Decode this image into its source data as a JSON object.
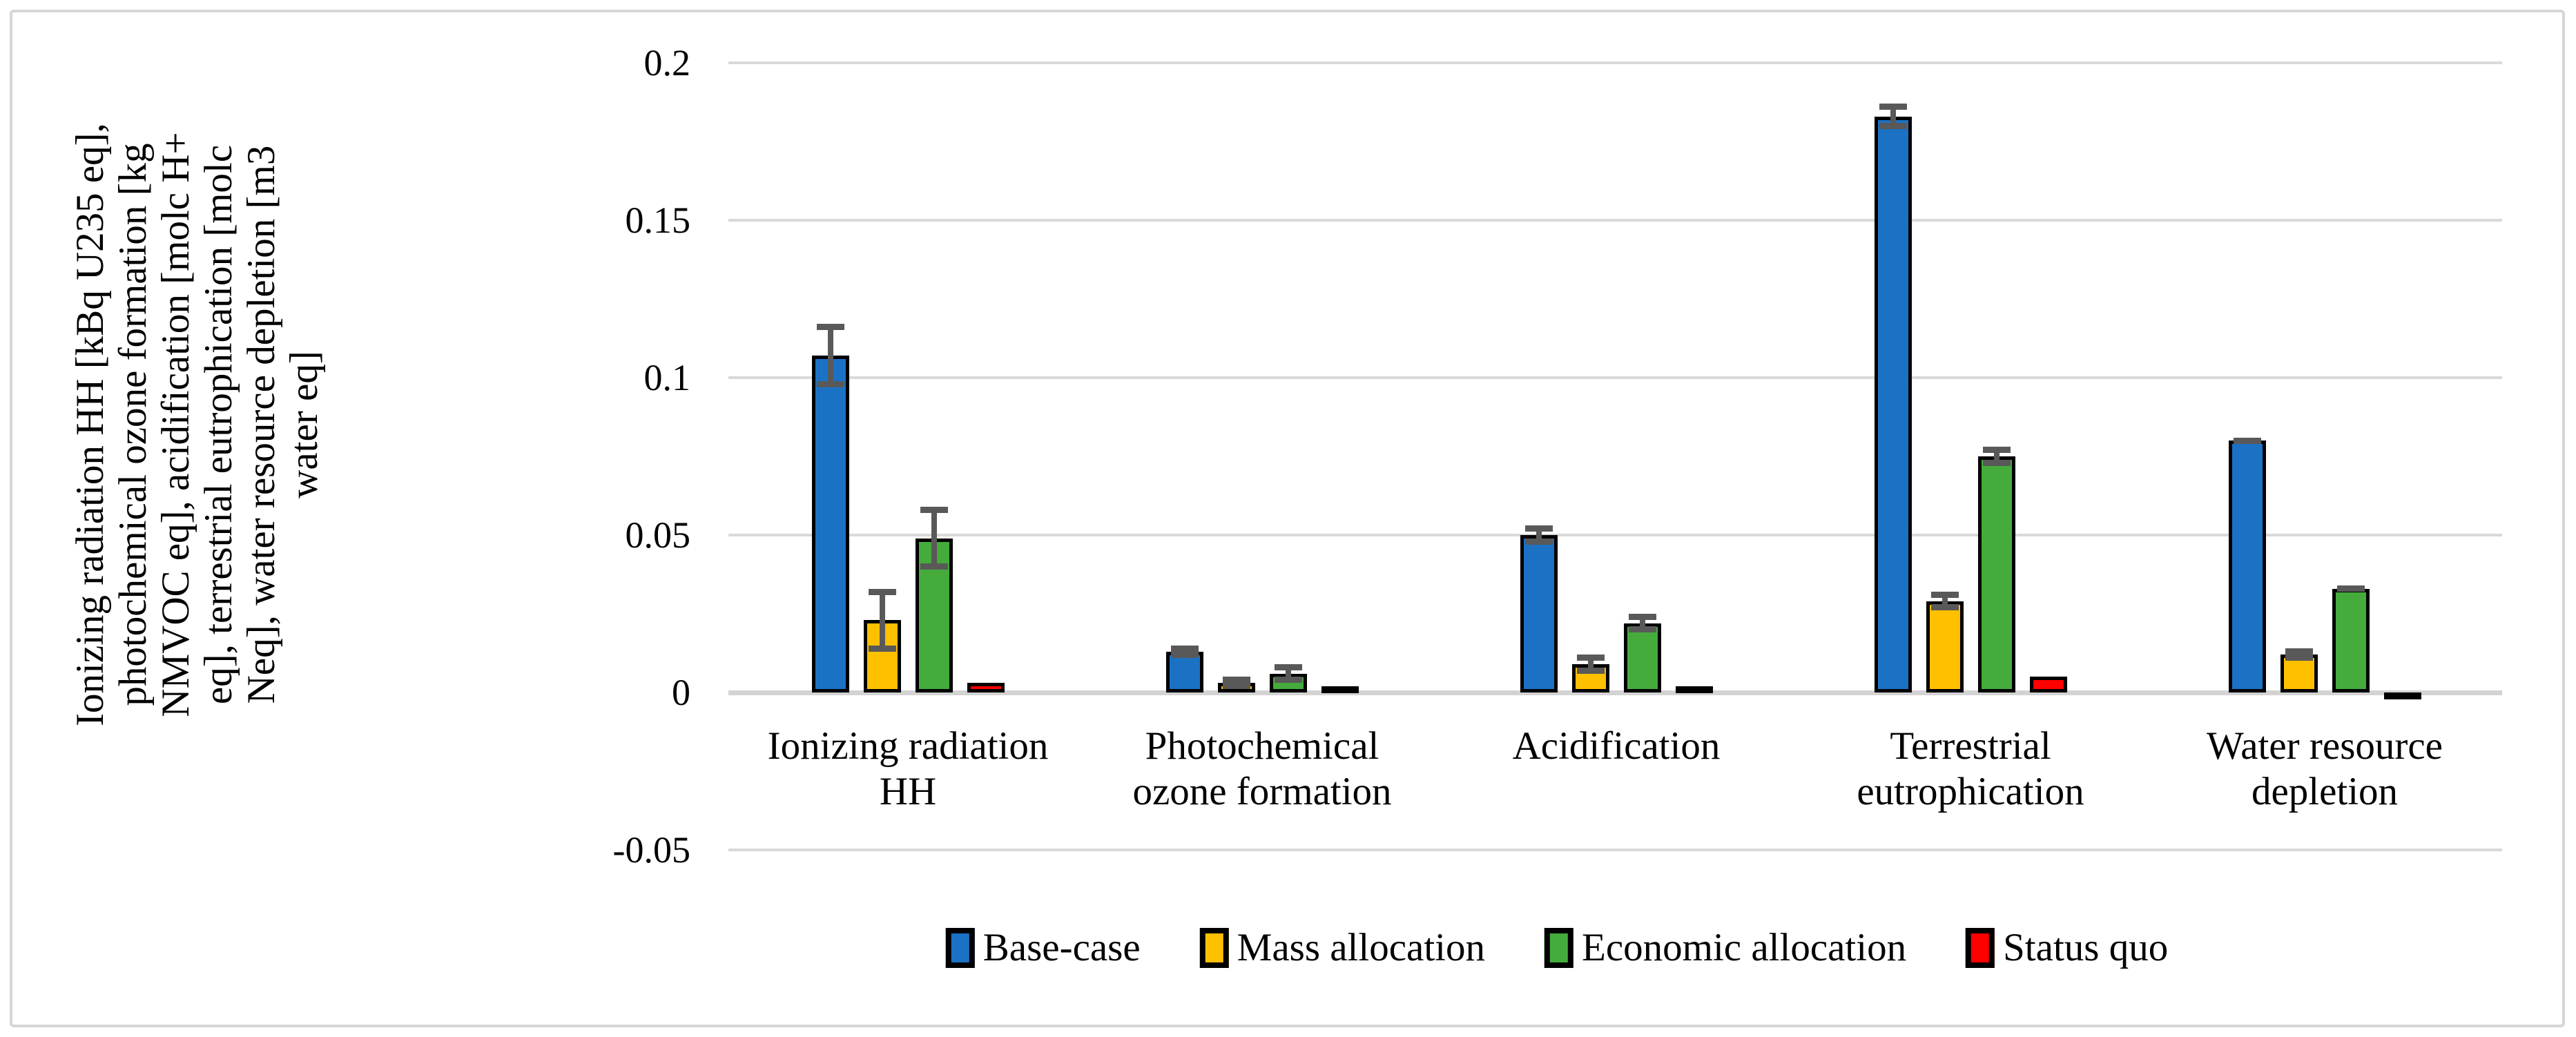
{
  "chart_data": {
    "type": "bar",
    "title": "",
    "ylabel_lines": [
      "Ionizing radiation HH [kBq U235 eq],",
      "photochemical ozone formation [kg",
      "NMVOC eq], acidification [molc H+",
      "eq], terrestrial eutrophication [molc",
      "Neq], water resource depletion [m3",
      "water eq]"
    ],
    "categories": [
      "Ionizing radiation HH",
      "Photochemical ozone formation",
      "Acidification",
      "Terrestrial eutrophication",
      "Water resource depletion"
    ],
    "category_label_lines": [
      [
        "Ionizing radiation",
        "HH"
      ],
      [
        "Photochemical",
        "ozone formation"
      ],
      [
        "Acidification"
      ],
      [
        "Terrestrial",
        "eutrophication"
      ],
      [
        "Water resource",
        "depletion"
      ]
    ],
    "y_ticks": [
      0.2,
      0.15,
      0.1,
      0.05,
      0,
      -0.05
    ],
    "y_tick_labels": [
      "0.2",
      "0.15",
      "0.1",
      "0.05",
      "0",
      "-0.05"
    ],
    "ylim": [
      -0.05,
      0.2
    ],
    "grid": true,
    "legend_position": "bottom",
    "series": [
      {
        "name": "Base-case",
        "color": "#1B72C5",
        "values": [
          0.107,
          0.013,
          0.05,
          0.183,
          0.08
        ],
        "errors": [
          0.01,
          0.002,
          0.003,
          0.004,
          0.001
        ]
      },
      {
        "name": "Mass allocation",
        "color": "#FFC000",
        "values": [
          0.023,
          0.003,
          0.009,
          0.029,
          0.012
        ],
        "errors": [
          0.01,
          0.002,
          0.003,
          0.003,
          0.002
        ]
      },
      {
        "name": "Economic allocation",
        "color": "#45AC3C",
        "values": [
          0.049,
          0.006,
          0.022,
          0.075,
          0.033
        ],
        "errors": [
          0.01,
          0.003,
          0.003,
          0.003,
          0.001
        ]
      },
      {
        "name": "Status quo",
        "color": "#FF0000",
        "values": [
          0.003,
          0.002,
          0.002,
          0.005,
          -0.001
        ],
        "errors": [
          0,
          0,
          0,
          0,
          0
        ]
      }
    ],
    "style_colors": {
      "gridline": "#D9D9D9",
      "zero_line": "#D3D3D3",
      "error_bar": "#595959",
      "bar_outline": "#000000",
      "frame_border": "#D6D6D6"
    }
  }
}
